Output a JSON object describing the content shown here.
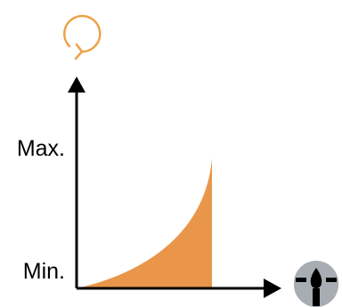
{
  "labels": {
    "max": "Max.",
    "min": "Min."
  },
  "icons": {
    "y_axis": "refresh-loop-icon",
    "x_axis": "nozzle-drop-icon"
  },
  "colors": {
    "fill": "#E9964A",
    "icon_accent": "#EFA047",
    "icon_gray": "#A8ADB4",
    "axis": "#000000"
  }
}
